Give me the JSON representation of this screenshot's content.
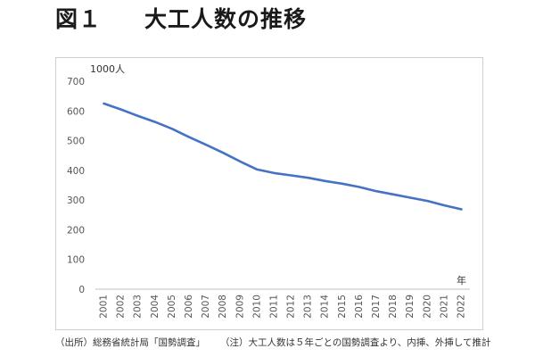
{
  "header": {
    "figure_label": "図１",
    "title": "大工人数の推移"
  },
  "footnotes": {
    "source": "（出所）総務省統計局「国勢調査」",
    "note": "（注）大工人数は５年ごとの国勢調査より、内挿、外挿して推計"
  },
  "chart_data": {
    "type": "line",
    "title": "大工人数の推移",
    "xlabel": "年",
    "ylabel": "1000人",
    "x": [
      "2001",
      "2002",
      "2003",
      "2004",
      "2005",
      "2006",
      "2007",
      "2008",
      "2009",
      "2010",
      "2011",
      "2012",
      "2013",
      "2014",
      "2015",
      "2016",
      "2017",
      "2018",
      "2019",
      "2020",
      "2021",
      "2022"
    ],
    "series": [
      {
        "values": [
          625,
          605,
          583,
          563,
          540,
          512,
          486,
          459,
          430,
          403,
          391,
          383,
          375,
          364,
          355,
          344,
          330,
          319,
          308,
          297,
          282,
          269
        ],
        "color": "#4472c4"
      }
    ],
    "ylim": [
      0,
      700
    ],
    "yticks": [
      0,
      100,
      200,
      300,
      400,
      500,
      600,
      700
    ],
    "grid": false,
    "legend": "none"
  }
}
